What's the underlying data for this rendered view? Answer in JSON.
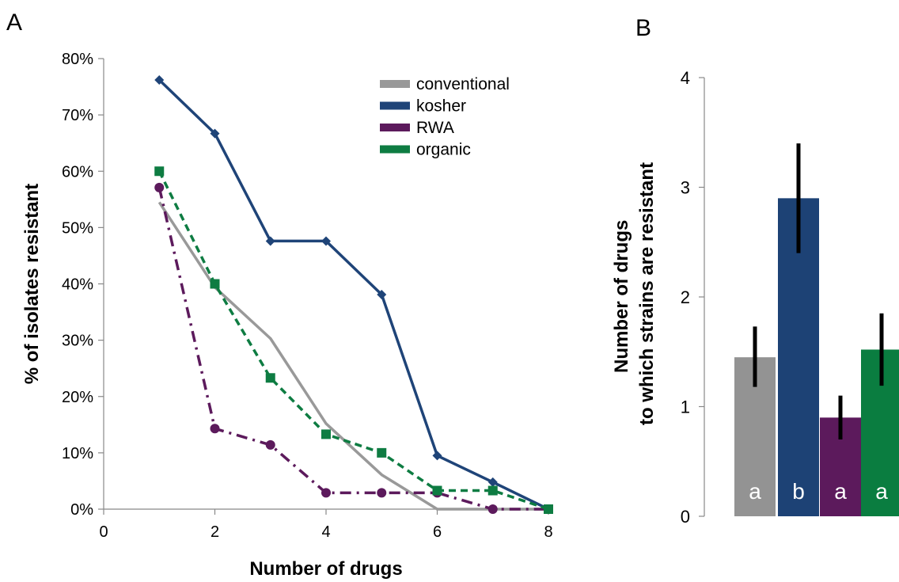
{
  "panels": {
    "a": "A",
    "b": "B"
  },
  "chart_data": [
    {
      "type": "line",
      "title": "",
      "xlabel": "Number of drugs",
      "ylabel": "% of isolates resistant",
      "xlim": [
        0,
        8
      ],
      "ylim": [
        0,
        80
      ],
      "xticks": [
        "0",
        "2",
        "4",
        "6",
        "8"
      ],
      "yticks": [
        "0%",
        "10%",
        "20%",
        "30%",
        "40%",
        "50%",
        "60%",
        "70%",
        "80%"
      ],
      "legend_position": "top-right",
      "grid": false,
      "series": [
        {
          "name": "conventional",
          "color": "#999999",
          "line_style": "solid",
          "marker": "none",
          "x": [
            1,
            2,
            3,
            4,
            5,
            6,
            7,
            8
          ],
          "y": [
            54.5,
            39.4,
            30.3,
            15.2,
            6.1,
            0,
            0,
            0
          ]
        },
        {
          "name": "kosher",
          "color": "#1f4478",
          "line_style": "solid",
          "marker": "diamond",
          "x": [
            1,
            2,
            3,
            4,
            5,
            6,
            7,
            8
          ],
          "y": [
            76.2,
            66.7,
            47.6,
            47.6,
            38.1,
            9.5,
            4.8,
            0
          ]
        },
        {
          "name": "RWA",
          "color": "#5c1a5c",
          "line_style": "dashdot",
          "marker": "circle",
          "x": [
            1,
            2,
            3,
            4,
            5,
            6,
            7,
            8
          ],
          "y": [
            57.1,
            14.3,
            11.4,
            2.9,
            2.9,
            2.9,
            0,
            0
          ]
        },
        {
          "name": "organic",
          "color": "#0e7c42",
          "line_style": "dashed",
          "marker": "square",
          "x": [
            1,
            2,
            3,
            4,
            5,
            6,
            7,
            8
          ],
          "y": [
            60,
            40,
            23.3,
            13.3,
            10,
            3.3,
            3.3,
            0
          ]
        }
      ]
    },
    {
      "type": "bar",
      "title": "",
      "xlabel": "",
      "ylabel_lines": [
        "Number of drugs",
        "to which strains are resistant"
      ],
      "ylim": [
        0,
        4
      ],
      "yticks": [
        "0",
        "1",
        "2",
        "3",
        "4"
      ],
      "grid": false,
      "series_key": [
        "conventional",
        "kosher",
        "RWA",
        "organic"
      ],
      "colors": [
        "#939393",
        "#1d4275",
        "#5c1a5c",
        "#0a7d40"
      ],
      "values": [
        1.45,
        2.9,
        0.9,
        1.52
      ],
      "error_low": [
        1.18,
        2.4,
        0.7,
        1.19
      ],
      "error_high": [
        1.73,
        3.4,
        1.1,
        1.85
      ],
      "letters": [
        "a",
        "b",
        "a",
        "a"
      ]
    }
  ]
}
